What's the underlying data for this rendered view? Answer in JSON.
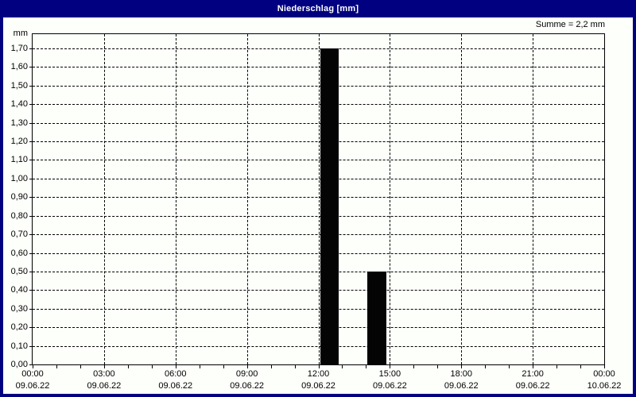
{
  "window": {
    "title": "Niederschlag [mm]"
  },
  "colors": {
    "titlebar_bg": "#000080",
    "titlebar_text": "#ffffff",
    "window_border": "#000080",
    "chart_bg": "#fdfffb",
    "grid_and_axis": "#000000",
    "bar_fill": "#040404"
  },
  "chart_data": {
    "type": "bar",
    "title": "Niederschlag [mm]",
    "ylabel": "mm",
    "annotation": "Summe = 2,2 mm",
    "sum_mm": 2.2,
    "grid": true,
    "ylim": [
      0,
      1.777
    ],
    "ytick_step": 0.1,
    "yticks": [
      {
        "value": 0.0,
        "label": "0,00"
      },
      {
        "value": 0.1,
        "label": "0,10"
      },
      {
        "value": 0.2,
        "label": "0,20"
      },
      {
        "value": 0.3,
        "label": "0,30"
      },
      {
        "value": 0.4,
        "label": "0,40"
      },
      {
        "value": 0.5,
        "label": "0,50"
      },
      {
        "value": 0.6,
        "label": "0,60"
      },
      {
        "value": 0.7,
        "label": "0,70"
      },
      {
        "value": 0.8,
        "label": "0,80"
      },
      {
        "value": 0.9,
        "label": "0,90"
      },
      {
        "value": 1.0,
        "label": "1,00"
      },
      {
        "value": 1.1,
        "label": "1,10"
      },
      {
        "value": 1.2,
        "label": "1,20"
      },
      {
        "value": 1.3,
        "label": "1,30"
      },
      {
        "value": 1.4,
        "label": "1,40"
      },
      {
        "value": 1.5,
        "label": "1,50"
      },
      {
        "value": 1.6,
        "label": "1,60"
      },
      {
        "value": 1.7,
        "label": "1,70"
      }
    ],
    "xlim_hours": [
      0,
      24
    ],
    "minor_xtick_hours": 1,
    "xticks": [
      {
        "hour": 0,
        "time": "00:00",
        "date": "09.06.22"
      },
      {
        "hour": 3,
        "time": "03:00",
        "date": "09.06.22"
      },
      {
        "hour": 6,
        "time": "06:00",
        "date": "09.06.22"
      },
      {
        "hour": 9,
        "time": "09:00",
        "date": "09.06.22"
      },
      {
        "hour": 12,
        "time": "12:00",
        "date": "09.06.22"
      },
      {
        "hour": 15,
        "time": "15:00",
        "date": "09.06.22"
      },
      {
        "hour": 18,
        "time": "18:00",
        "date": "09.06.22"
      },
      {
        "hour": 21,
        "time": "21:00",
        "date": "09.06.22"
      },
      {
        "hour": 24,
        "time": "00:00",
        "date": "10.06.22"
      }
    ],
    "bars": [
      {
        "start_hour": 12,
        "end_hour": 13,
        "value": 1.7,
        "value_label": "1,70"
      },
      {
        "start_hour": 14,
        "end_hour": 15,
        "value": 0.5,
        "value_label": "0,50"
      }
    ]
  }
}
